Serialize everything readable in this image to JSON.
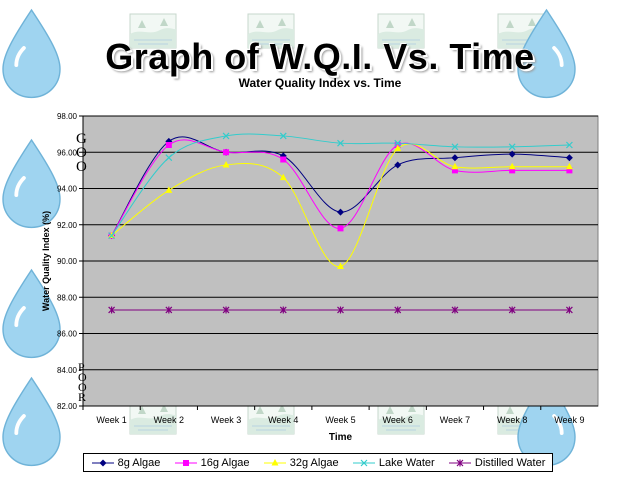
{
  "slide_title": "Graph of W.Q.I. Vs. Time",
  "decor": {
    "background_icons": [
      "water-drop-icon",
      "lake-landscape-icon"
    ],
    "drop_color": "#9fd4f0",
    "stray_left_letters_top": [
      "G",
      "O",
      "O"
    ],
    "stray_left_letters_bottom": [
      "P",
      "O",
      "O",
      "R"
    ]
  },
  "chart_data": {
    "type": "line",
    "title": "Water Quality Index vs. Time",
    "xlabel": "Time",
    "ylabel": "Water Quality Index (%)",
    "categories": [
      "Week 1",
      "Week 2",
      "Week 3",
      "Week 4",
      "Week 5",
      "Week 6",
      "Week 7",
      "Week 8",
      "Week 9"
    ],
    "ylim": [
      82,
      98
    ],
    "yticks": [
      82,
      84,
      86,
      88,
      90,
      92,
      94,
      96,
      98
    ],
    "ytick_labels": [
      "82.00",
      "84.00",
      "86.00",
      "88.00",
      "90.00",
      "92.00",
      "94.00",
      "96.00",
      "98.00"
    ],
    "grid": true,
    "legend_position": "bottom",
    "plot_background": "#c0c0c0",
    "series": [
      {
        "name": "8g Algae",
        "color": "#000080",
        "marker": "diamond",
        "values": [
          91.4,
          96.6,
          96.0,
          95.8,
          92.7,
          95.3,
          95.7,
          95.9,
          95.7
        ]
      },
      {
        "name": "16g Algae",
        "color": "#ff00ff",
        "marker": "square",
        "values": [
          91.4,
          96.4,
          96.0,
          95.6,
          91.8,
          96.4,
          95.0,
          95.0,
          95.0
        ]
      },
      {
        "name": "32g Algae",
        "color": "#ffff00",
        "marker": "triangle",
        "values": [
          91.4,
          93.9,
          95.3,
          94.6,
          89.7,
          96.2,
          95.2,
          95.2,
          95.2
        ]
      },
      {
        "name": "Lake Water",
        "color": "#33cccc",
        "marker": "x",
        "values": [
          91.4,
          95.7,
          96.9,
          96.9,
          96.5,
          96.5,
          96.3,
          96.3,
          96.4
        ]
      },
      {
        "name": "Distilled Water",
        "color": "#800080",
        "marker": "star",
        "values": [
          87.3,
          87.3,
          87.3,
          87.3,
          87.3,
          87.3,
          87.3,
          87.3,
          87.3
        ]
      }
    ]
  }
}
